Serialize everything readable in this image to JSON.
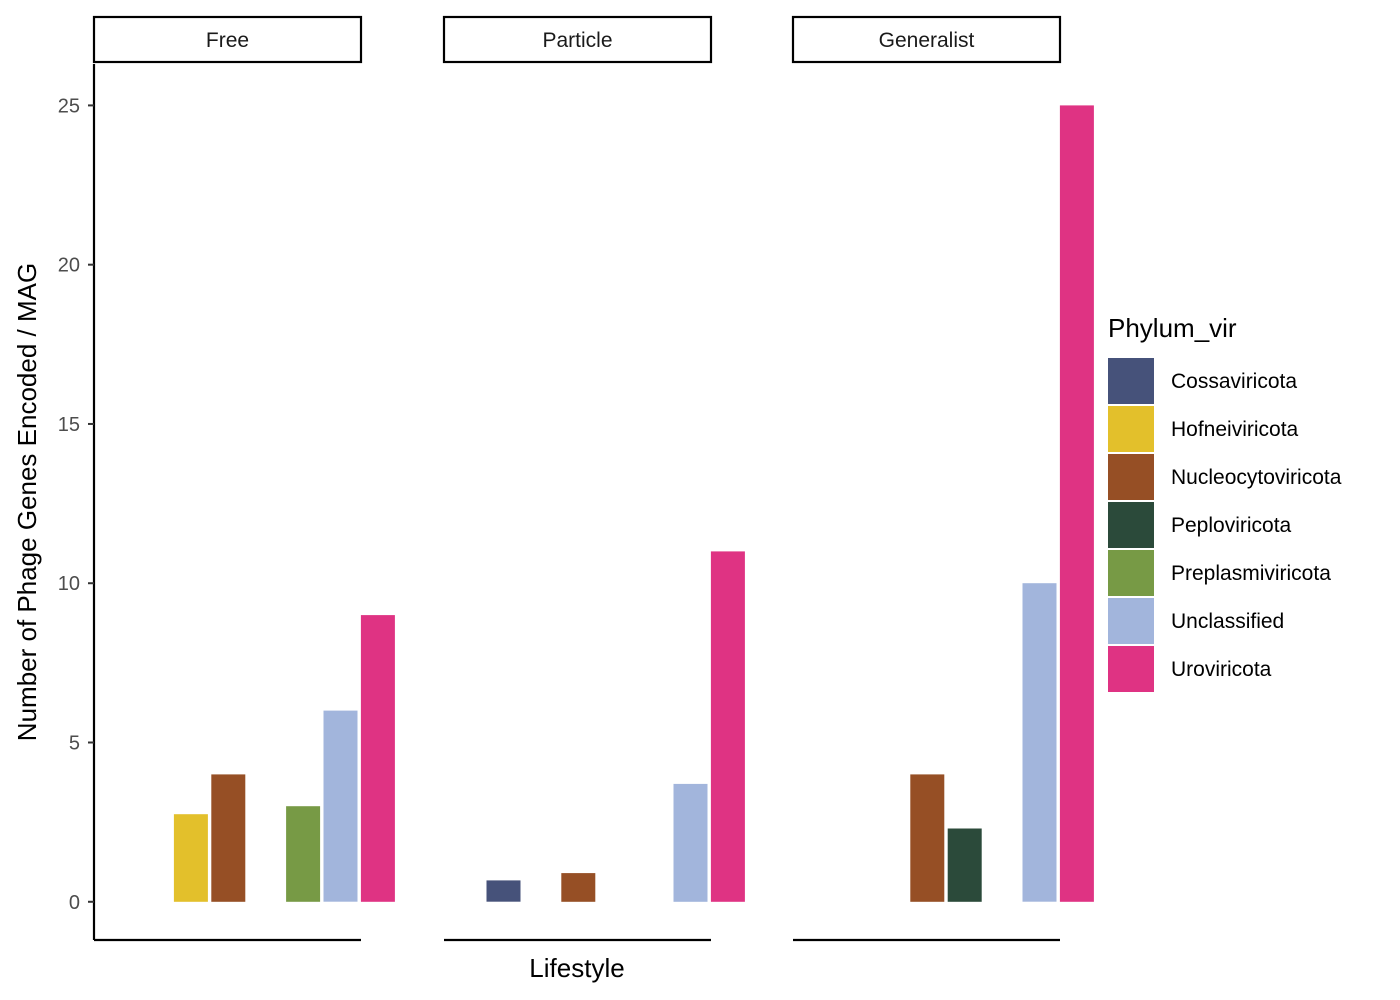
{
  "chart_data": {
    "type": "bar",
    "facet_variable": "Lifestyle",
    "facets": [
      "Free",
      "Particle",
      "Generalist"
    ],
    "categories": [
      "Cossaviricota",
      "Hofneiviricota",
      "Nucleocytoviricota",
      "Peploviricota",
      "Preplasmiviricota",
      "Unclassified",
      "Uroviricota"
    ],
    "values": {
      "Free": [
        null,
        2.75,
        4.0,
        null,
        3.0,
        6.0,
        9.0
      ],
      "Particle": [
        0.67,
        null,
        0.9,
        null,
        null,
        3.7,
        11.0
      ],
      "Generalist": [
        null,
        null,
        4.0,
        2.3,
        null,
        10.0,
        25.0
      ]
    },
    "colors": [
      "#46527a",
      "#e3c02b",
      "#964f25",
      "#2b4a3a",
      "#779a45",
      "#a2b5dc",
      "#df3383"
    ],
    "xlabel": "Lifestyle",
    "ylabel": "Number of Phage Genes Encoded / MAG",
    "ylim": [
      -1.2,
      26.3
    ],
    "yticks": [
      0,
      5,
      10,
      15,
      20,
      25
    ],
    "grid": false,
    "legend": {
      "title": "Phylum_vir",
      "placement": "right",
      "labels": [
        "Cossaviricota",
        "Hofneiviricota",
        "Nucleocytoviricota",
        "Peploviricota",
        "Preplasmiviricota",
        "Unclassified",
        "Uroviricota"
      ]
    }
  }
}
